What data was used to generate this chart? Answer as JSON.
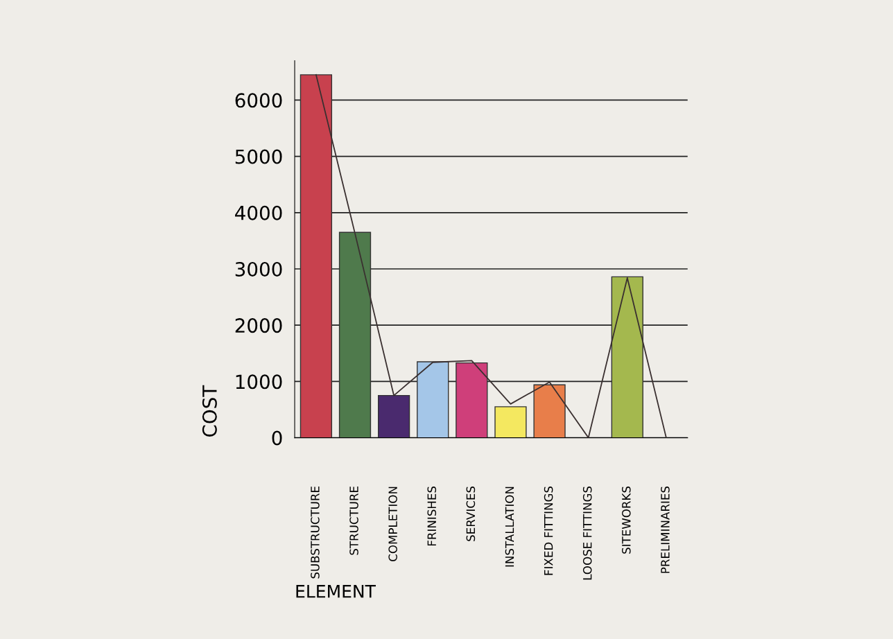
{
  "chart_data": {
    "type": "bar",
    "xlabel": "ELEMENT",
    "ylabel": "COST",
    "categories": [
      "SUBSTRUCTURE",
      "STRUCTURE",
      "COMPLETION",
      "FRINISHES",
      "SERVICES",
      "INSTALLATION",
      "FIXED FITTINGS",
      "LOOSE FITTINGS",
      "SITEWORKS",
      "PRELIMINARIES"
    ],
    "series": [
      {
        "colors": [
          "#c8414e",
          "#4f7a4c",
          "#4a2a6e",
          "#a4c6e8",
          "#cf3f7a",
          "#f4e860",
          "#e87e4a",
          null,
          "#a4b84e",
          null
        ],
        "values": [
          6450,
          3650,
          750,
          1350,
          1330,
          550,
          940,
          0,
          2860,
          0
        ]
      },
      {
        "type": "line",
        "color": "#3a3030",
        "values": [
          6450,
          3630,
          750,
          1340,
          1370,
          600,
          990,
          0,
          2840,
          0
        ]
      }
    ],
    "ylim": [
      0,
      6700
    ],
    "yticks": [
      0,
      1000,
      2000,
      3000,
      4000,
      5000,
      6000
    ],
    "grid": "y",
    "legend": false
  }
}
